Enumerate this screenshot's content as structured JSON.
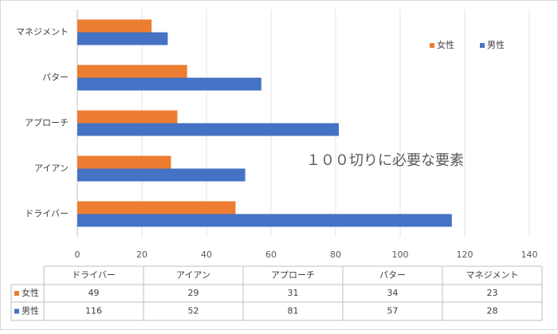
{
  "chart_data": {
    "type": "bar",
    "orientation": "horizontal",
    "title": "１００切りに必要な要素",
    "categories": [
      "ドライバー",
      "アイアン",
      "アプローチ",
      "パター",
      "マネジメント"
    ],
    "series": [
      {
        "name": "女性",
        "color": "#ED7D31",
        "values": [
          49,
          29,
          31,
          34,
          23
        ]
      },
      {
        "name": "男性",
        "color": "#4472C4",
        "values": [
          116,
          52,
          81,
          57,
          28
        ]
      }
    ],
    "xlim": [
      0,
      140
    ],
    "x_ticks": [
      "0",
      "20",
      "40",
      "60",
      "80",
      "100",
      "120",
      "140"
    ],
    "grid": true,
    "legend_position": "top-right",
    "data_table": {
      "headers": [
        "ドライバー",
        "アイアン",
        "アプローチ",
        "パター",
        "マネジメント"
      ],
      "rows": [
        {
          "label": "女性",
          "values": [
            "49",
            "29",
            "31",
            "34",
            "23"
          ]
        },
        {
          "label": "男性",
          "values": [
            "116",
            "52",
            "81",
            "57",
            "28"
          ]
        }
      ]
    }
  }
}
